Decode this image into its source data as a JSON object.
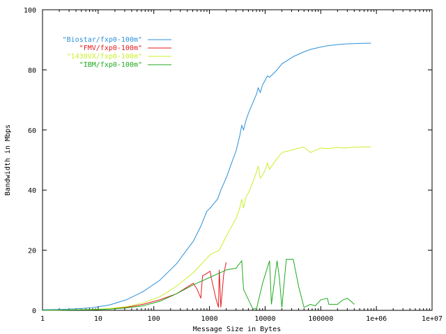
{
  "chart_data": {
    "type": "line",
    "title": "",
    "xlabel": "Message Size in Bytes",
    "ylabel": "Bandwidth in Mbps",
    "xscale": "log",
    "xlim": [
      1,
      10000000
    ],
    "ylim": [
      0,
      100
    ],
    "grid": false,
    "legend_placement": "top-left",
    "x_ticks": [
      {
        "value": 1,
        "label": "1"
      },
      {
        "value": 10,
        "label": "10"
      },
      {
        "value": 100,
        "label": "100"
      },
      {
        "value": 1000,
        "label": "1000"
      },
      {
        "value": 10000,
        "label": "10000"
      },
      {
        "value": 100000,
        "label": "100000"
      },
      {
        "value": 1000000,
        "label": "1e+06"
      },
      {
        "value": 10000000,
        "label": "1e+07"
      }
    ],
    "y_ticks": [
      {
        "value": 0,
        "label": "0"
      },
      {
        "value": 20,
        "label": "20"
      },
      {
        "value": 40,
        "label": "40"
      },
      {
        "value": 60,
        "label": "60"
      },
      {
        "value": 80,
        "label": "80"
      },
      {
        "value": 100,
        "label": "100"
      }
    ],
    "series": [
      {
        "name": "\"Biostar/fxp0-100m\"",
        "color": "#2b8fd8",
        "x": [
          1,
          2,
          4,
          8,
          16,
          32,
          64,
          128,
          256,
          512,
          700,
          900,
          1024,
          1200,
          1400,
          1600,
          2048,
          2500,
          3000,
          3500,
          3800,
          4096,
          4500,
          5000,
          6000,
          7000,
          7500,
          8192,
          9000,
          10000,
          11000,
          12000,
          16384,
          20000,
          32768,
          50000,
          65536,
          100000,
          131072,
          200000,
          262144,
          500000,
          800000
        ],
        "y": [
          0.2,
          0.3,
          0.5,
          0.9,
          1.8,
          3.5,
          6.2,
          10.0,
          15.5,
          23.0,
          28.0,
          33.0,
          34.0,
          35.5,
          37.0,
          40.0,
          44.5,
          49.0,
          53.0,
          58.0,
          61.5,
          60.0,
          63.0,
          65.5,
          69.0,
          72.0,
          74.0,
          72.5,
          75.0,
          76.5,
          78.0,
          77.5,
          80.0,
          82.0,
          84.5,
          86.0,
          86.8,
          87.6,
          88.0,
          88.4,
          88.6,
          88.8,
          88.9
        ]
      },
      {
        "name": "\"FMV/fxp0-100m\"",
        "color": "#e41a1c",
        "x": [
          1,
          8,
          16,
          32,
          64,
          128,
          256,
          512,
          600,
          700,
          750,
          850,
          1024,
          1100,
          1200,
          1300,
          1450,
          1500,
          1600,
          1800,
          2000
        ],
        "y": [
          0.0,
          0.2,
          0.5,
          1.0,
          2.0,
          3.5,
          5.5,
          9.0,
          7.0,
          4.0,
          11.5,
          12.0,
          13.0,
          10.0,
          7.0,
          4.0,
          1.0,
          13.5,
          1.0,
          12.0,
          16.0
        ]
      },
      {
        "name": "\"1430VX/fxp0-100m\"",
        "color": "#c8f02a",
        "x": [
          1,
          8,
          16,
          32,
          64,
          128,
          256,
          512,
          1024,
          1500,
          2048,
          3000,
          3500,
          3800,
          4096,
          4500,
          5000,
          6000,
          7000,
          7500,
          8192,
          9000,
          10000,
          11000,
          12000,
          16384,
          20000,
          32768,
          40000,
          50000,
          65536,
          100000,
          131072,
          200000,
          262144,
          400000,
          800000
        ],
        "y": [
          0.0,
          0.3,
          0.6,
          1.2,
          2.5,
          4.5,
          8.0,
          12.5,
          18.5,
          20.0,
          25.0,
          30.5,
          34.0,
          37.0,
          34.0,
          37.5,
          39.0,
          42.5,
          46.0,
          48.0,
          44.0,
          45.0,
          46.5,
          49.0,
          47.0,
          50.5,
          52.5,
          53.5,
          54.0,
          54.3,
          52.5,
          54.0,
          53.8,
          54.2,
          54.0,
          54.3,
          54.4
        ]
      },
      {
        "name": "\"IBM/fxp0-100m\"",
        "color": "#1daa1d",
        "x": [
          1,
          8,
          16,
          32,
          64,
          128,
          256,
          512,
          1024,
          2048,
          3000,
          3800,
          4096,
          6000,
          7000,
          9000,
          12000,
          13000,
          16384,
          18000,
          20000,
          24000,
          32000,
          40000,
          50000,
          65536,
          80000,
          100000,
          131072,
          140000,
          200000,
          250000,
          300000,
          350000,
          400000
        ],
        "y": [
          0.0,
          0.2,
          0.4,
          0.8,
          1.5,
          3.0,
          5.5,
          8.5,
          11.0,
          13.5,
          14.0,
          16.5,
          7.0,
          0.5,
          0.5,
          9.0,
          16.5,
          2.0,
          16.5,
          11.0,
          1.0,
          17.0,
          17.0,
          8.0,
          1.0,
          2.0,
          1.5,
          3.5,
          4.0,
          2.0,
          2.0,
          3.5,
          4.0,
          3.0,
          2.0
        ]
      }
    ]
  }
}
